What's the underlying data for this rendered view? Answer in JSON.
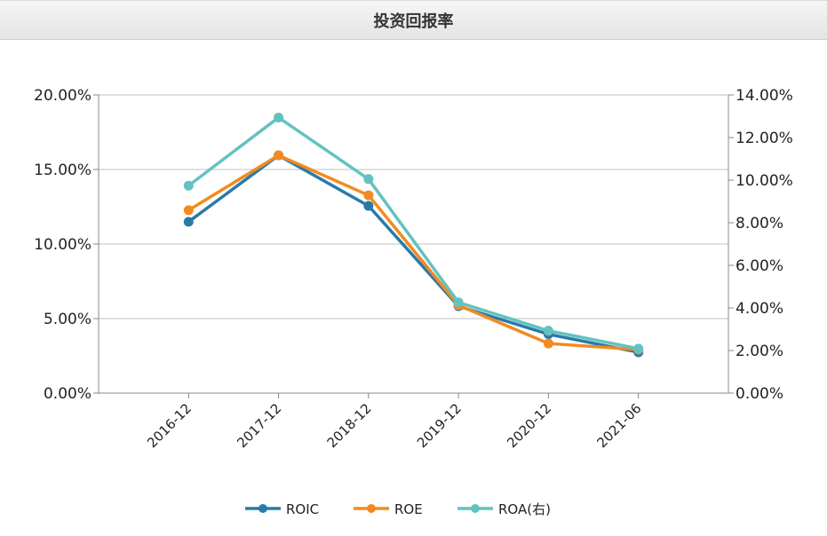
{
  "header": {
    "title": "投资回报率"
  },
  "chart_data": {
    "type": "line",
    "title": "投资回报率",
    "categories": [
      "2016-12",
      "2017-12",
      "2018-12",
      "2019-12",
      "2020-12",
      "2021-06"
    ],
    "y_left": {
      "ylim": [
        0,
        20
      ],
      "ticks": [
        "0.00%",
        "5.00%",
        "10.00%",
        "15.00%",
        "20.00%"
      ]
    },
    "y_right": {
      "ylim": [
        0,
        14
      ],
      "ticks": [
        "0.00%",
        "2.00%",
        "4.00%",
        "6.00%",
        "8.00%",
        "10.00%",
        "12.00%",
        "14.00%"
      ]
    },
    "grid": true,
    "legend_position": "bottom",
    "series": [
      {
        "name": "ROIC",
        "axis": "left",
        "color": "#2a7aa8",
        "values": [
          11.49,
          15.95,
          12.56,
          5.83,
          3.95,
          2.74
        ]
      },
      {
        "name": "ROE",
        "axis": "left",
        "color": "#f18b21",
        "values": [
          12.27,
          15.95,
          13.27,
          5.89,
          3.33,
          2.92
        ]
      },
      {
        "name": "ROA(右)",
        "axis": "right",
        "color": "#63c2c0",
        "values": [
          9.74,
          12.94,
          10.05,
          4.26,
          2.93,
          2.09
        ]
      }
    ]
  }
}
